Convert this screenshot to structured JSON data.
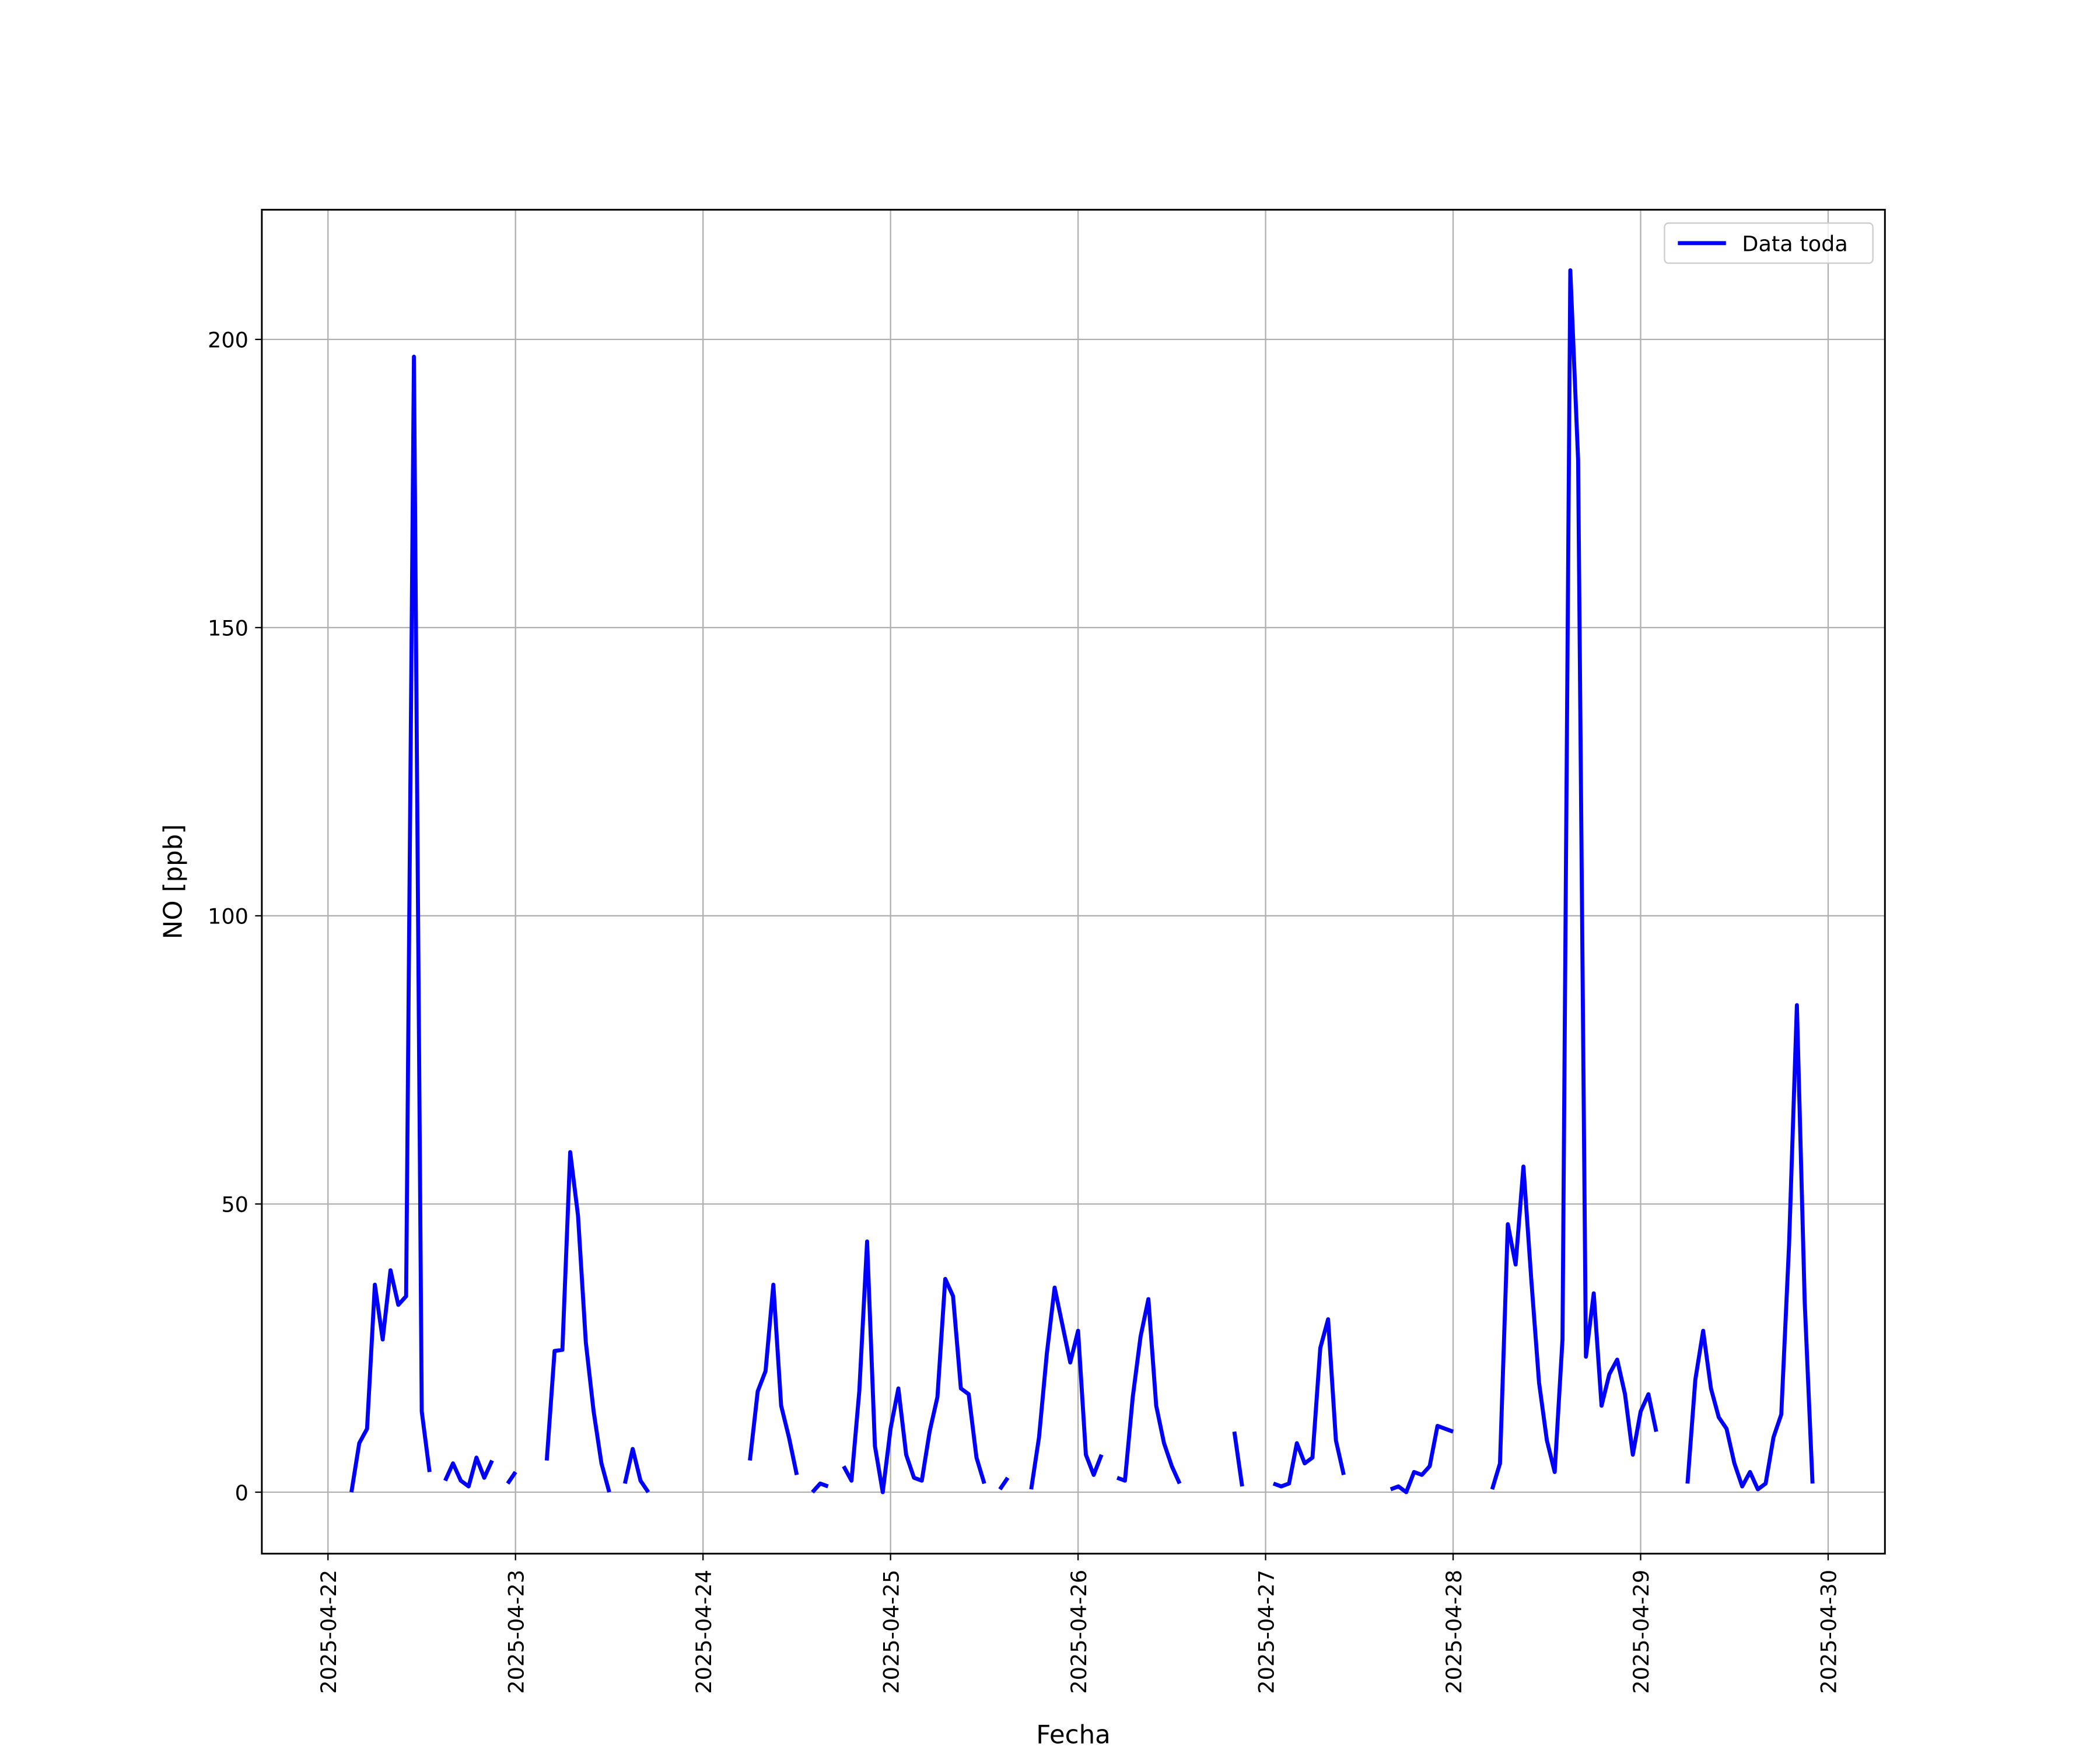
{
  "chart_data": {
    "type": "line",
    "xlabel": "Fecha",
    "ylabel": "NO [ppb]",
    "x": [
      "2025-04-22 03:00",
      "2025-04-22 04:00",
      "2025-04-22 05:00",
      "2025-04-22 06:00",
      "2025-04-22 07:00",
      "2025-04-22 08:00",
      "2025-04-22 09:00",
      "2025-04-22 10:00",
      "2025-04-22 11:00",
      "2025-04-22 12:00",
      "2025-04-22 13:00",
      "2025-04-22 14:00",
      "2025-04-22 15:00",
      "2025-04-22 16:00",
      "2025-04-22 17:00",
      "2025-04-22 18:00",
      "2025-04-22 19:00",
      "2025-04-22 20:00",
      "2025-04-22 21:00",
      "2025-04-22 22:00",
      "2025-04-22 23:00",
      "2025-04-23 00:00",
      "2025-04-23 01:00",
      "2025-04-23 02:00",
      "2025-04-23 03:00",
      "2025-04-23 04:00",
      "2025-04-23 05:00",
      "2025-04-23 06:00",
      "2025-04-23 07:00",
      "2025-04-23 08:00",
      "2025-04-23 09:00",
      "2025-04-23 10:00",
      "2025-04-23 11:00",
      "2025-04-23 12:00",
      "2025-04-23 13:00",
      "2025-04-23 14:00",
      "2025-04-23 15:00",
      "2025-04-23 16:00",
      "2025-04-23 17:00",
      "2025-04-23 18:00",
      "2025-04-23 19:00",
      "2025-04-23 20:00",
      "2025-04-23 21:00",
      "2025-04-23 22:00",
      "2025-04-23 23:00",
      "2025-04-24 00:00",
      "2025-04-24 01:00",
      "2025-04-24 02:00",
      "2025-04-24 03:00",
      "2025-04-24 04:00",
      "2025-04-24 05:00",
      "2025-04-24 06:00",
      "2025-04-24 07:00",
      "2025-04-24 08:00",
      "2025-04-24 09:00",
      "2025-04-24 10:00",
      "2025-04-24 11:00",
      "2025-04-24 12:00",
      "2025-04-24 13:00",
      "2025-04-24 14:00",
      "2025-04-24 15:00",
      "2025-04-24 16:00",
      "2025-04-24 17:00",
      "2025-04-24 18:00",
      "2025-04-24 19:00",
      "2025-04-24 20:00",
      "2025-04-24 21:00",
      "2025-04-24 22:00",
      "2025-04-24 23:00",
      "2025-04-25 00:00",
      "2025-04-25 01:00",
      "2025-04-25 02:00",
      "2025-04-25 03:00",
      "2025-04-25 04:00",
      "2025-04-25 05:00",
      "2025-04-25 06:00",
      "2025-04-25 07:00",
      "2025-04-25 08:00",
      "2025-04-25 09:00",
      "2025-04-25 10:00",
      "2025-04-25 11:00",
      "2025-04-25 12:00",
      "2025-04-25 13:00",
      "2025-04-25 14:00",
      "2025-04-25 15:00",
      "2025-04-25 16:00",
      "2025-04-25 17:00",
      "2025-04-25 18:00",
      "2025-04-25 19:00",
      "2025-04-25 20:00",
      "2025-04-25 21:00",
      "2025-04-25 22:00",
      "2025-04-25 23:00",
      "2025-04-26 00:00",
      "2025-04-26 01:00",
      "2025-04-26 02:00",
      "2025-04-26 03:00",
      "2025-04-26 04:00",
      "2025-04-26 05:00",
      "2025-04-26 06:00",
      "2025-04-26 07:00",
      "2025-04-26 08:00",
      "2025-04-26 09:00",
      "2025-04-26 10:00",
      "2025-04-26 11:00",
      "2025-04-26 12:00",
      "2025-04-26 13:00",
      "2025-04-26 14:00",
      "2025-04-26 15:00",
      "2025-04-26 16:00",
      "2025-04-26 17:00",
      "2025-04-26 18:00",
      "2025-04-26 19:00",
      "2025-04-26 20:00",
      "2025-04-26 21:00",
      "2025-04-26 22:00",
      "2025-04-26 23:00",
      "2025-04-27 00:00",
      "2025-04-27 01:00",
      "2025-04-27 02:00",
      "2025-04-27 03:00",
      "2025-04-27 04:00",
      "2025-04-27 05:00",
      "2025-04-27 06:00",
      "2025-04-27 07:00",
      "2025-04-27 08:00",
      "2025-04-27 09:00",
      "2025-04-27 10:00",
      "2025-04-27 11:00",
      "2025-04-27 12:00",
      "2025-04-27 13:00",
      "2025-04-27 14:00",
      "2025-04-27 15:00",
      "2025-04-27 16:00",
      "2025-04-27 17:00",
      "2025-04-27 18:00",
      "2025-04-27 19:00",
      "2025-04-27 20:00",
      "2025-04-27 21:00",
      "2025-04-27 22:00",
      "2025-04-27 23:00",
      "2025-04-28 00:00",
      "2025-04-28 01:00",
      "2025-04-28 02:00",
      "2025-04-28 03:00",
      "2025-04-28 04:00",
      "2025-04-28 05:00",
      "2025-04-28 06:00",
      "2025-04-28 07:00",
      "2025-04-28 08:00",
      "2025-04-28 09:00",
      "2025-04-28 10:00",
      "2025-04-28 11:00",
      "2025-04-28 12:00",
      "2025-04-28 13:00",
      "2025-04-28 14:00",
      "2025-04-28 15:00",
      "2025-04-28 16:00",
      "2025-04-28 17:00",
      "2025-04-28 18:00",
      "2025-04-28 19:00",
      "2025-04-28 20:00",
      "2025-04-28 21:00",
      "2025-04-28 22:00",
      "2025-04-28 23:00",
      "2025-04-29 00:00",
      "2025-04-29 01:00",
      "2025-04-29 02:00",
      "2025-04-29 03:00",
      "2025-04-29 04:00",
      "2025-04-29 05:00",
      "2025-04-29 06:00",
      "2025-04-29 07:00",
      "2025-04-29 08:00",
      "2025-04-29 09:00",
      "2025-04-29 10:00",
      "2025-04-29 11:00",
      "2025-04-29 12:00",
      "2025-04-29 13:00",
      "2025-04-29 14:00",
      "2025-04-29 15:00",
      "2025-04-29 16:00",
      "2025-04-29 17:00",
      "2025-04-29 18:00",
      "2025-04-29 19:00",
      "2025-04-29 20:00",
      "2025-04-29 21:00",
      "2025-04-29 22:00"
    ],
    "series": [
      {
        "name": "Data toda",
        "color": "#0000ff",
        "values": [
          0,
          8.5,
          11,
          36,
          26.5,
          38.5,
          32.5,
          34,
          197,
          14,
          3.5,
          null,
          2,
          5,
          2,
          1,
          6,
          2.5,
          5.5,
          null,
          1.5,
          3.5,
          null,
          null,
          null,
          5.5,
          24.5,
          24.7,
          59,
          48,
          26,
          14,
          5,
          0,
          null,
          1.5,
          7.5,
          2,
          0,
          null,
          null,
          null,
          null,
          null,
          null,
          null,
          null,
          null,
          null,
          null,
          null,
          5.5,
          17.5,
          21,
          36,
          15,
          9.5,
          3,
          null,
          0,
          1.5,
          1,
          null,
          4.5,
          2,
          17.5,
          43.5,
          8,
          0,
          11,
          18,
          6.5,
          2.5,
          2,
          10.5,
          16.5,
          37,
          34,
          18,
          17,
          6,
          1.5,
          null,
          0.5,
          2.5,
          null,
          null,
          0.5,
          9.5,
          24,
          35.5,
          29,
          22.5,
          28,
          6.5,
          3,
          6.5,
          null,
          2.5,
          2,
          16.5,
          27,
          33.5,
          15,
          8.5,
          4.5,
          1.5,
          null,
          null,
          null,
          null,
          null,
          null,
          10.5,
          1,
          null,
          null,
          null,
          1.5,
          1,
          1.5,
          8.5,
          5,
          6,
          25,
          30,
          9,
          3,
          null,
          null,
          null,
          null,
          null,
          0.5,
          1,
          0,
          3.5,
          3,
          4.5,
          11.5,
          11,
          10.5,
          null,
          null,
          null,
          null,
          0.5,
          5,
          46.5,
          39.5,
          56.5,
          37,
          19,
          9,
          3.5,
          26.5,
          212,
          179,
          23.5,
          34.5,
          15,
          20.5,
          23,
          17,
          6.5,
          14,
          17,
          10.5,
          null,
          null,
          null,
          1.5,
          19.5,
          28,
          18,
          13,
          11,
          5,
          1,
          3.5,
          0.5,
          1.5,
          9.5,
          13.5,
          43,
          84.5,
          33,
          1.5
        ]
      }
    ],
    "xlim": [
      "2025-04-21 15:32",
      "2025-04-30 07:16"
    ],
    "xticks": [
      "2025-04-22",
      "2025-04-23",
      "2025-04-24",
      "2025-04-25",
      "2025-04-26",
      "2025-04-27",
      "2025-04-28",
      "2025-04-29",
      "2025-04-30"
    ],
    "ylim": [
      -10.66,
      222.5
    ],
    "yticks": [
      0,
      50,
      100,
      150,
      200
    ],
    "grid": true,
    "legend": "upper right"
  }
}
